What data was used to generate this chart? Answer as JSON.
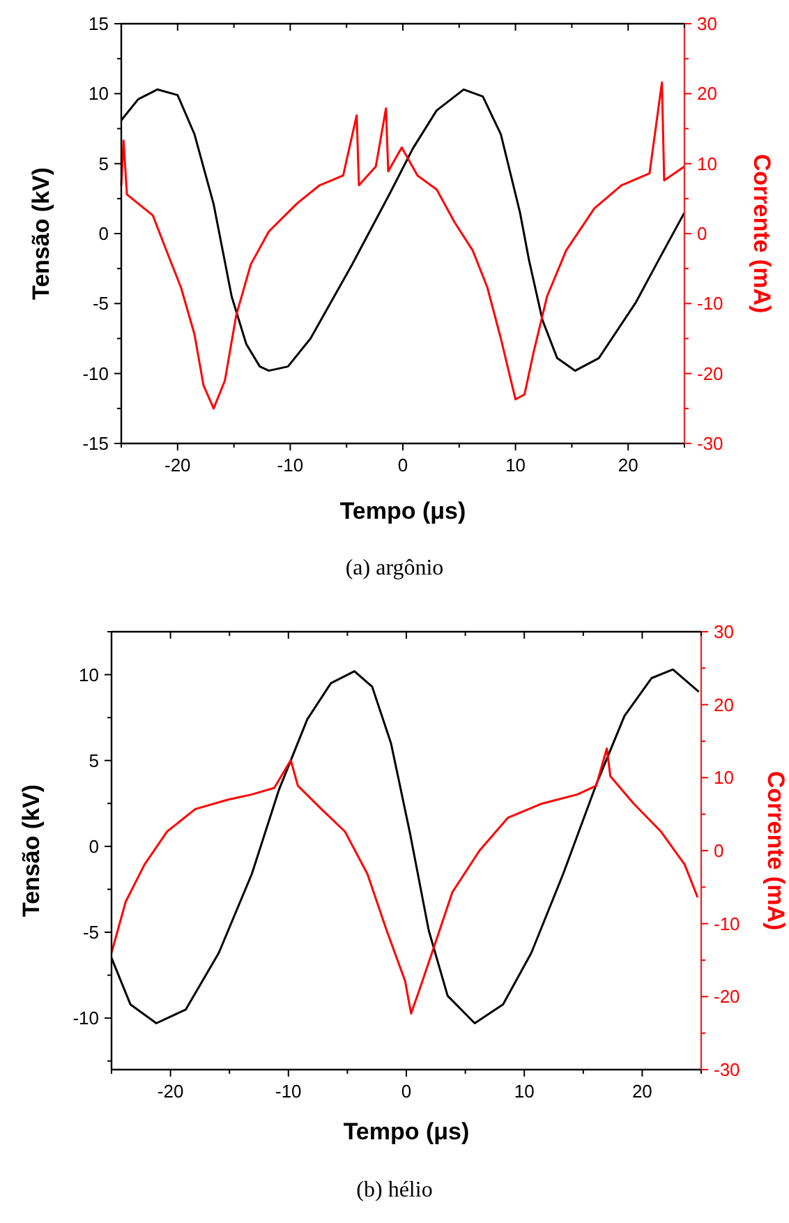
{
  "chart_data": [
    {
      "type": "line",
      "xlabel": "Tempo (μs)",
      "ylabel": "Tensão (kV)",
      "y2label": "Corrente (mA)",
      "annotations": [
        "(a) argônio"
      ],
      "xlim": [
        -25,
        25
      ],
      "xticks": [
        {
          "value": -25,
          "label": null
        },
        -20,
        {
          "value": -15,
          "label": null
        },
        -10,
        {
          "value": -5,
          "label": null
        },
        0,
        {
          "value": 5,
          "label": null
        },
        10,
        {
          "value": 15,
          "label": null
        },
        20,
        {
          "value": 25,
          "label": null
        }
      ],
      "ylim": [
        -15,
        15
      ],
      "yticks": [
        -15,
        {
          "value": -12.5,
          "label": null
        },
        -10,
        {
          "value": -7.5,
          "label": null
        },
        -5,
        {
          "value": -2.5,
          "label": null
        },
        0,
        {
          "value": 2.5,
          "label": null
        },
        5,
        {
          "value": 7.5,
          "label": null
        },
        10,
        {
          "value": 12.5,
          "label": null
        },
        15
      ],
      "y2lim": [
        -30,
        30
      ],
      "y2ticks": [
        -30,
        {
          "value": -25,
          "label": null
        },
        -20,
        {
          "value": -15,
          "label": null
        },
        -10,
        {
          "value": -5,
          "label": null
        },
        0,
        {
          "value": 5,
          "label": null
        },
        10,
        {
          "value": 15,
          "label": null
        },
        20,
        {
          "value": 25,
          "label": null
        },
        30
      ],
      "grid": false,
      "series": [
        {
          "color": "#000000",
          "x": [
            -25,
            -23.5,
            -21.8,
            -20,
            -18.5,
            -16.8,
            -16,
            -15.2,
            -13.9,
            -12.7,
            -11.9,
            -10.2,
            -8.2,
            -4.5,
            -1.2,
            0.9,
            3,
            5.4,
            7.1,
            8.7,
            10.4,
            11.2,
            12.4,
            13.7,
            15.3,
            17.4,
            20.7,
            22.7,
            25
          ],
          "values": [
            8.1,
            9.6,
            10.3,
            9.9,
            7.1,
            2.1,
            -1.2,
            -4.5,
            -7.9,
            -9.5,
            -9.8,
            -9.5,
            -7.5,
            -2.2,
            2.8,
            6.1,
            8.8,
            10.3,
            9.8,
            7.1,
            1.5,
            -1.9,
            -6.2,
            -8.9,
            -9.8,
            -8.9,
            -4.9,
            -1.9,
            1.5
          ]
        },
        {
          "color": "#ff0000",
          "axis": "y2",
          "x": [
            -25,
            -24.8,
            -24.5,
            -22.2,
            -21,
            -19.7,
            -18.5,
            -17.7,
            -16.8,
            -15.8,
            -14.8,
            -13.5,
            -11.9,
            -9.4,
            -7.4,
            -5.3,
            -4.1,
            -3.9,
            -2.4,
            -1.5,
            -1.3,
            -0.1,
            1.3,
            3,
            4.6,
            6.2,
            7.5,
            8.7,
            10,
            10.8,
            11.6,
            12.8,
            14.5,
            17,
            19.4,
            21.9,
            23,
            23.2,
            25
          ],
          "values": [
            6.9,
            13.3,
            5.6,
            2.6,
            -2.4,
            -7.7,
            -14.4,
            -21.7,
            -25,
            -21,
            -11.7,
            -4.4,
            0.3,
            4.3,
            6.9,
            8.3,
            16.9,
            6.9,
            9.6,
            17.9,
            8.9,
            12.3,
            8.3,
            6.3,
            1.6,
            -2.4,
            -7.7,
            -15,
            -23.7,
            -23,
            -17,
            -9,
            -2.4,
            3.6,
            6.9,
            8.6,
            21.6,
            7.6,
            9.6
          ]
        }
      ]
    },
    {
      "type": "line",
      "xlabel": "Tempo (μs)",
      "ylabel": "Tensão (kV)",
      "y2label": "Corrente (mA)",
      "annotations": [
        "(b) hélio"
      ],
      "xlim": [
        -25,
        25
      ],
      "xticks": [
        {
          "value": -25,
          "label": null
        },
        -20,
        {
          "value": -15,
          "label": null
        },
        -10,
        {
          "value": -5,
          "label": null
        },
        0,
        {
          "value": 5,
          "label": null
        },
        10,
        {
          "value": 15,
          "label": null
        },
        20,
        {
          "value": 25,
          "label": null
        }
      ],
      "ylim": [
        -13,
        12.5
      ],
      "yticks": [
        {
          "value": -12.5,
          "label": null
        },
        -10,
        {
          "value": -7.5,
          "label": null
        },
        -5,
        {
          "value": -2.5,
          "label": null
        },
        0,
        {
          "value": 2.5,
          "label": null
        },
        5,
        {
          "value": 7.5,
          "label": null
        },
        10,
        {
          "value": 12.5,
          "label": null
        }
      ],
      "y2lim": [
        -30,
        30
      ],
      "y2ticks": [
        -30,
        {
          "value": -25,
          "label": null
        },
        -20,
        {
          "value": -15,
          "label": null
        },
        -10,
        {
          "value": -5,
          "label": null
        },
        0,
        {
          "value": 5,
          "label": null
        },
        10,
        {
          "value": 15,
          "label": null
        },
        20,
        {
          "value": 25,
          "label": null
        },
        30
      ],
      "grid": false,
      "series": [
        {
          "color": "#000000",
          "x": [
            -25,
            -23.4,
            -21.2,
            -18.7,
            -15.9,
            -13.1,
            -10.8,
            -8.4,
            -6.4,
            -4.4,
            -2.9,
            -1.3,
            0.3,
            1.9,
            3.5,
            5.8,
            8.2,
            10.6,
            13.3,
            16.1,
            18.5,
            20.8,
            22.6,
            24.8
          ],
          "values": [
            -6.5,
            -9.2,
            -10.3,
            -9.5,
            -6.2,
            -1.6,
            3.3,
            7.4,
            9.5,
            10.2,
            9.3,
            6,
            0.8,
            -4.9,
            -8.7,
            -10.3,
            -9.2,
            -6.2,
            -1.6,
            3.6,
            7.6,
            9.8,
            10.3,
            9
          ]
        },
        {
          "color": "#ff0000",
          "axis": "y2",
          "x": [
            -25,
            -23.8,
            -22.2,
            -20.3,
            -17.9,
            -15.1,
            -13.1,
            -11.2,
            -9.8,
            -9.2,
            -7.2,
            -5.2,
            -3.3,
            -1.7,
            -0.1,
            0.4,
            1.1,
            2.3,
            3.9,
            6.2,
            8.6,
            11.4,
            14.5,
            16.1,
            17,
            17.3,
            19.3,
            21.6,
            23.6,
            24.7
          ],
          "values": [
            -14,
            -7,
            -1.9,
            2.6,
            5.7,
            7,
            7.7,
            8.6,
            12.4,
            8.9,
            5.7,
            2.6,
            -3.2,
            -10.8,
            -17.9,
            -22.3,
            -19.1,
            -13.4,
            -5.7,
            0,
            4.5,
            6.4,
            7.7,
            8.9,
            14,
            10.2,
            6.4,
            2.6,
            -1.9,
            -6.4
          ]
        }
      ]
    }
  ]
}
